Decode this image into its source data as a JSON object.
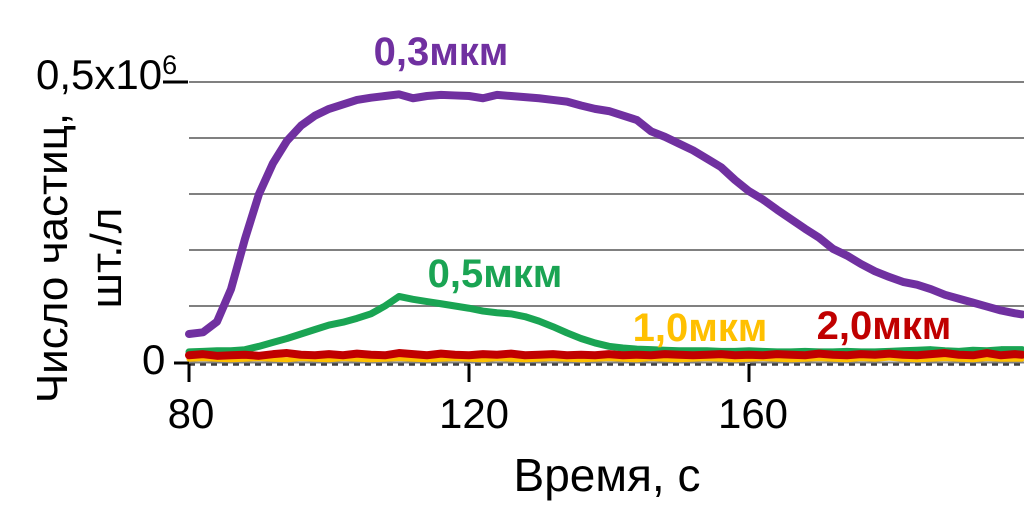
{
  "chart_data": {
    "type": "line",
    "title": "",
    "xlabel": "Время, с",
    "ylabel": "Число частиц, шт./л",
    "ylabel_lines": [
      "Число частиц,",
      "шт./л"
    ],
    "y_axis": {
      "top_tick_base": "0,5x10",
      "top_tick_exp": "6",
      "zero_tick": "0",
      "max": 500000,
      "gridline_step": 100000
    },
    "x_ticks": [
      80,
      120,
      160
    ],
    "xlim": [
      80,
      199
    ],
    "ylim": [
      0,
      500000
    ],
    "grid": "horizontal gridlines every 100000, gray; dashed dark line at zero",
    "legend_position": "inline colored labels near each curve",
    "value_unit": "шт./л",
    "value_scale": 1000,
    "x": [
      80,
      82,
      84,
      86,
      88,
      90,
      92,
      94,
      96,
      98,
      100,
      102,
      104,
      106,
      108,
      110,
      112,
      114,
      116,
      118,
      120,
      122,
      124,
      126,
      128,
      130,
      132,
      134,
      136,
      138,
      140,
      142,
      144,
      146,
      148,
      150,
      152,
      154,
      156,
      158,
      160,
      162,
      164,
      166,
      168,
      170,
      172,
      174,
      176,
      178,
      180,
      182,
      184,
      186,
      188,
      190,
      192,
      194,
      196,
      198,
      199
    ],
    "series": [
      {
        "name": "0.3 um particles",
        "label": "0,3мкм",
        "color": "#7030A0",
        "line_width": 8,
        "values": [
          50,
          53,
          72,
          130,
          220,
          300,
          355,
          395,
          422,
          440,
          452,
          460,
          468,
          472,
          475,
          478,
          471,
          475,
          477,
          476,
          475,
          471,
          477,
          475,
          473,
          471,
          468,
          465,
          458,
          452,
          448,
          440,
          432,
          412,
          402,
          390,
          378,
          363,
          348,
          325,
          305,
          290,
          272,
          255,
          238,
          222,
          202,
          190,
          175,
          162,
          152,
          143,
          138,
          130,
          120,
          113,
          106,
          99,
          92,
          87,
          85
        ]
      },
      {
        "name": "0.5 um particles",
        "label": "0,5мкм",
        "color": "#1AA453",
        "line_width": 7,
        "values": [
          18,
          19,
          20,
          20,
          22,
          28,
          35,
          42,
          50,
          58,
          66,
          71,
          78,
          86,
          100,
          117,
          112,
          108,
          104,
          100,
          96,
          91,
          88,
          86,
          81,
          73,
          63,
          52,
          42,
          34,
          28,
          25,
          23,
          22,
          21,
          20,
          20,
          20,
          19,
          19,
          20,
          19,
          18,
          18,
          19,
          18,
          18,
          19,
          18,
          18,
          19,
          20,
          21,
          22,
          20,
          19,
          21,
          20,
          22,
          22,
          22
        ]
      },
      {
        "name": "1.0 um particles",
        "label": "1,0мкм",
        "color": "#FFC000",
        "line_width": 5,
        "values": [
          5,
          6,
          5,
          4,
          5,
          6,
          5,
          4,
          6,
          5,
          4,
          6,
          5,
          4,
          5,
          6,
          5,
          4,
          5,
          6,
          5,
          4,
          6,
          5,
          4,
          5,
          6,
          5,
          4,
          5,
          6,
          5,
          4,
          6,
          5,
          4,
          5,
          6,
          5,
          4,
          5,
          6,
          5,
          4,
          5,
          6,
          5,
          4,
          6,
          5,
          7,
          5,
          4,
          5,
          6,
          5,
          4,
          6,
          5,
          5,
          5
        ]
      },
      {
        "name": "2.0 um particles",
        "label": "2,0мкм",
        "color": "#C00000",
        "line_width": 8,
        "values": [
          12,
          14,
          11,
          12,
          13,
          11,
          14,
          16,
          13,
          12,
          14,
          12,
          15,
          13,
          12,
          16,
          14,
          12,
          15,
          13,
          12,
          14,
          13,
          15,
          12,
          13,
          14,
          12,
          13,
          12,
          14,
          12,
          13,
          12,
          14,
          13,
          12,
          13,
          14,
          12,
          13,
          12,
          14,
          13,
          12,
          15,
          13,
          12,
          14,
          13,
          15,
          13,
          12,
          14,
          16,
          13,
          12,
          16,
          12,
          14,
          13
        ]
      }
    ],
    "colors": {
      "gridline": "#808080",
      "zero_dashed_line": "#404040",
      "axis_text": "#000000",
      "background": "#FFFFFF"
    },
    "draw_order": [
      2,
      1,
      3,
      0
    ]
  }
}
